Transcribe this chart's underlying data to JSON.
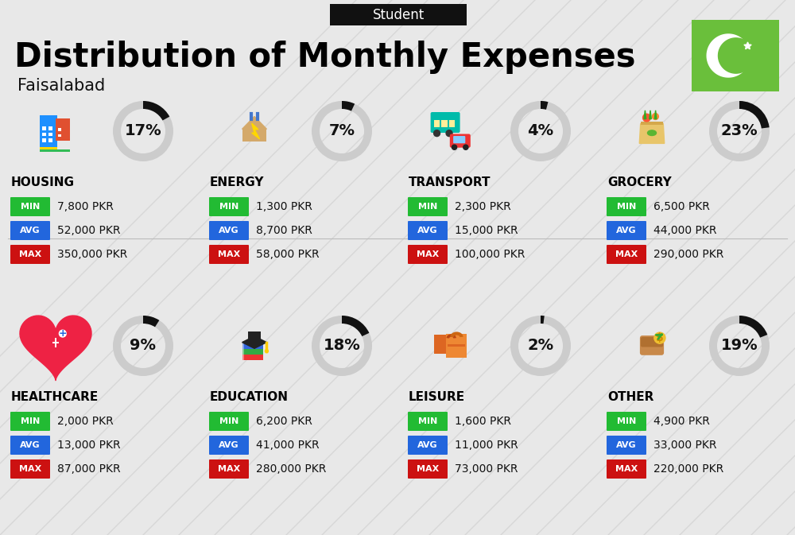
{
  "title": "Distribution of Monthly Expenses",
  "subtitle": "Student",
  "location": "Faisalabad",
  "bg_color": "#e8e8e8",
  "header_bg": "#111111",
  "header_text_color": "#ffffff",
  "title_color": "#000000",
  "location_color": "#111111",
  "flag_green": "#6abf3b",
  "categories": [
    {
      "name": "HOUSING",
      "percent": 17,
      "min": "7,800 PKR",
      "avg": "52,000 PKR",
      "max": "350,000 PKR",
      "row": 0,
      "col": 0
    },
    {
      "name": "ENERGY",
      "percent": 7,
      "min": "1,300 PKR",
      "avg": "8,700 PKR",
      "max": "58,000 PKR",
      "row": 0,
      "col": 1
    },
    {
      "name": "TRANSPORT",
      "percent": 4,
      "min": "2,300 PKR",
      "avg": "15,000 PKR",
      "max": "100,000 PKR",
      "row": 0,
      "col": 2
    },
    {
      "name": "GROCERY",
      "percent": 23,
      "min": "6,500 PKR",
      "avg": "44,000 PKR",
      "max": "290,000 PKR",
      "row": 0,
      "col": 3
    },
    {
      "name": "HEALTHCARE",
      "percent": 9,
      "min": "2,000 PKR",
      "avg": "13,000 PKR",
      "max": "87,000 PKR",
      "row": 1,
      "col": 0
    },
    {
      "name": "EDUCATION",
      "percent": 18,
      "min": "6,200 PKR",
      "avg": "41,000 PKR",
      "max": "280,000 PKR",
      "row": 1,
      "col": 1
    },
    {
      "name": "LEISURE",
      "percent": 2,
      "min": "1,600 PKR",
      "avg": "11,000 PKR",
      "max": "73,000 PKR",
      "row": 1,
      "col": 2
    },
    {
      "name": "OTHER",
      "percent": 19,
      "min": "4,900 PKR",
      "avg": "33,000 PKR",
      "max": "220,000 PKR",
      "row": 1,
      "col": 3
    }
  ],
  "min_color": "#22bb33",
  "avg_color": "#2266dd",
  "max_color": "#cc1111",
  "label_fg": "#ffffff",
  "value_fg": "#111111",
  "cat_name_fg": "#000000",
  "ring_dark": "#111111",
  "ring_light": "#cccccc",
  "stripe_color": "#d0d0d0"
}
